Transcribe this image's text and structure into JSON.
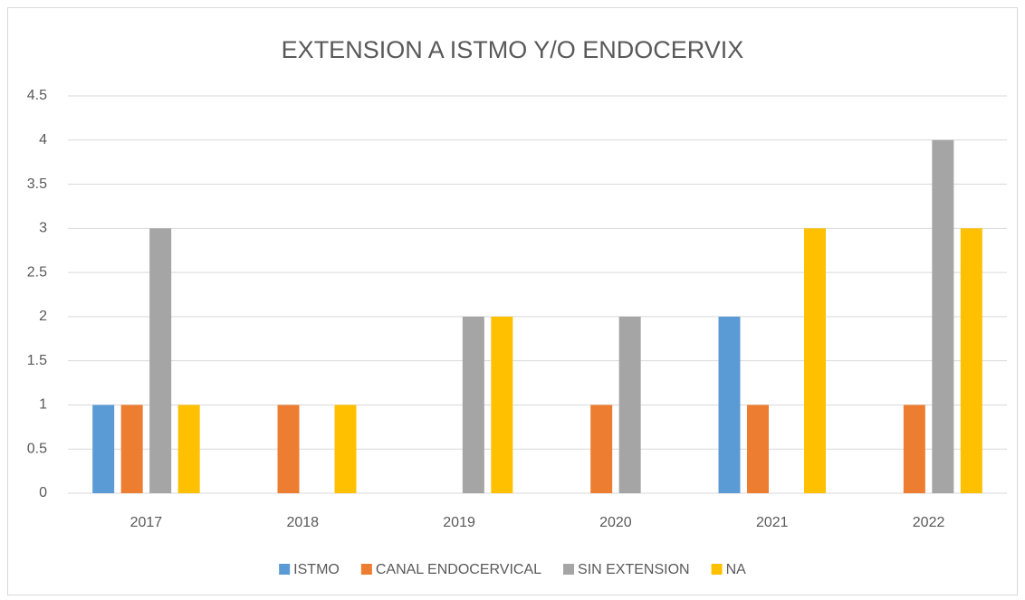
{
  "chart_data": {
    "type": "bar",
    "title": "EXTENSION A ISTMO Y/O ENDOCERVIX",
    "categories": [
      "2017",
      "2018",
      "2019",
      "2020",
      "2021",
      "2022"
    ],
    "series": [
      {
        "name": "ISTMO",
        "color": "#5b9bd5",
        "values": [
          1,
          0,
          0,
          0,
          2,
          0
        ]
      },
      {
        "name": "CANAL ENDOCERVICAL",
        "color": "#ed7d31",
        "values": [
          1,
          1,
          0,
          1,
          1,
          1
        ]
      },
      {
        "name": "SIN EXTENSION",
        "color": "#a5a5a5",
        "values": [
          3,
          0,
          2,
          2,
          0,
          4
        ]
      },
      {
        "name": "NA",
        "color": "#ffc000",
        "values": [
          1,
          1,
          2,
          0,
          3,
          3
        ]
      }
    ],
    "ylim": [
      0,
      4.5
    ],
    "yticks": [
      0,
      0.5,
      1,
      1.5,
      2,
      2.5,
      3,
      3.5,
      4,
      4.5
    ],
    "grid": true,
    "legend": "bottom"
  }
}
